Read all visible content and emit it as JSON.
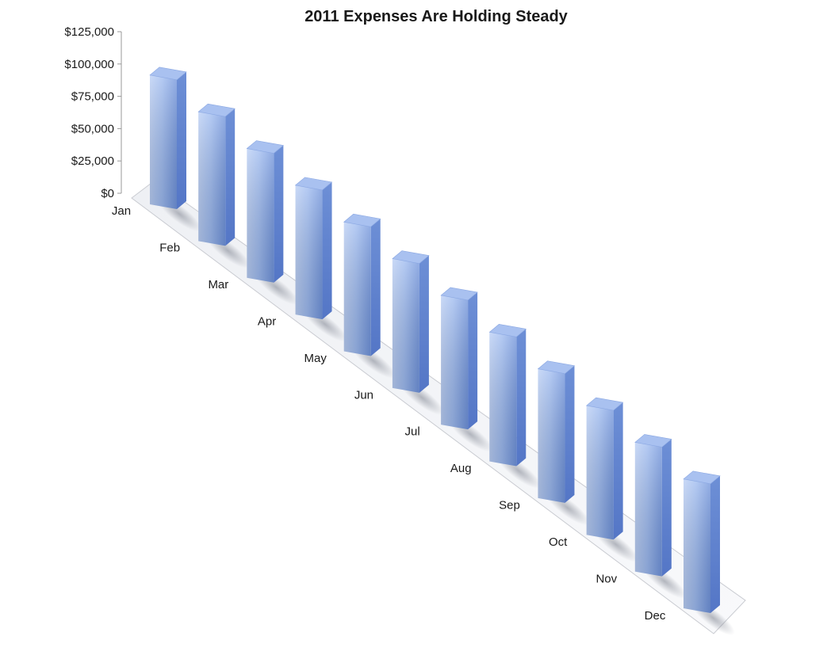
{
  "chart_data": {
    "type": "bar",
    "title": "2011 Expenses Are Holding Steady",
    "xlabel": "",
    "ylabel": "",
    "categories": [
      "Jan",
      "Feb",
      "Mar",
      "Apr",
      "May",
      "Jun",
      "Jul",
      "Aug",
      "Sep",
      "Oct",
      "Nov",
      "Dec"
    ],
    "values": [
      100000,
      100000,
      100000,
      100000,
      100000,
      100000,
      100000,
      100000,
      100000,
      100000,
      100000,
      100000
    ],
    "ylim": [
      0,
      125000
    ],
    "yticks": [
      "$0",
      "$25,000",
      "$50,000",
      "$75,000",
      "$100,000",
      "$125,000"
    ],
    "yticks_values": [
      0,
      25000,
      50000,
      75000,
      100000,
      125000
    ],
    "bar_color": "#8faee8",
    "grid": false,
    "legend": "none",
    "style": "3d-perspective"
  }
}
